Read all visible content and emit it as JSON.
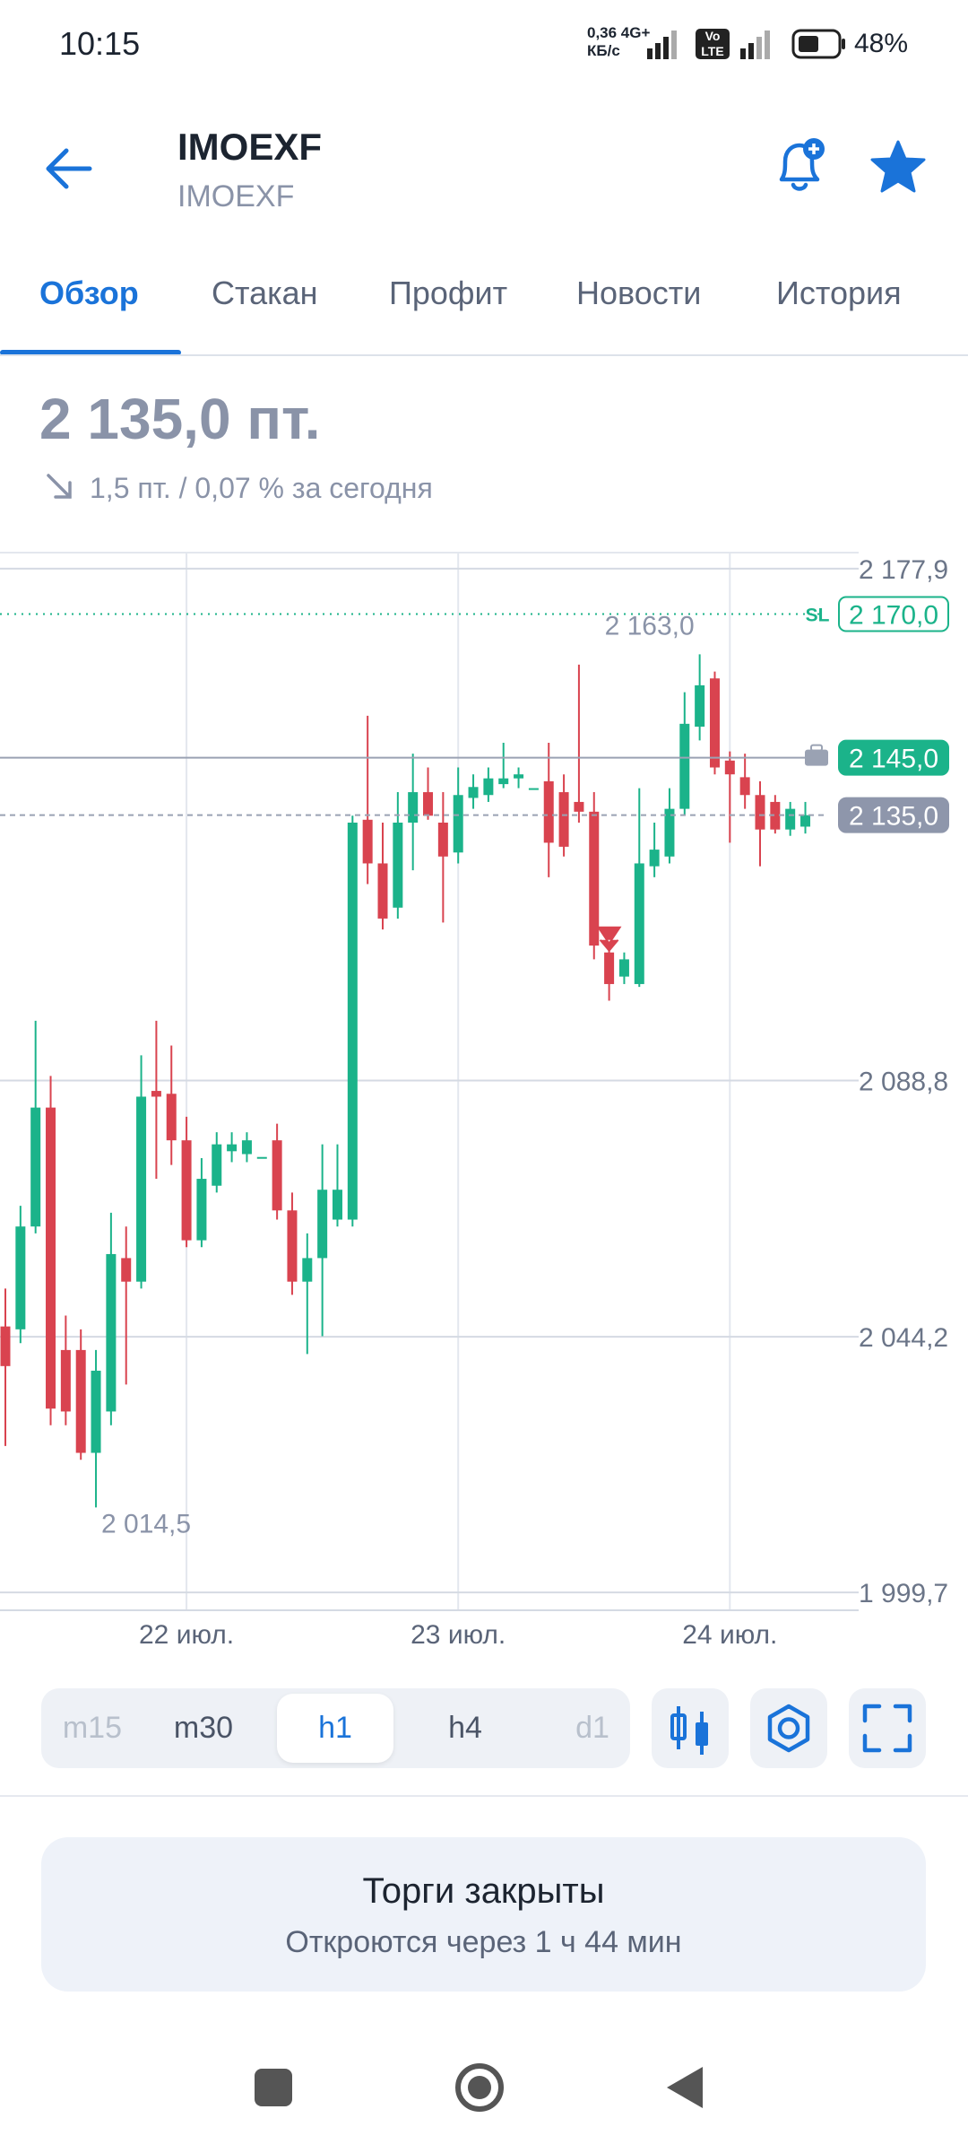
{
  "status_bar": {
    "time": "10:15",
    "net_speed": "0,36 4G+",
    "net_unit": "КБ/с",
    "volte_top": "Vo",
    "volte_bottom": "LTE",
    "battery": "48%"
  },
  "header": {
    "title": "IMOEXF",
    "subtitle": "IMOEXF"
  },
  "tabs": {
    "items": [
      "Обзор",
      "Стакан",
      "Профит",
      "Новости",
      "История"
    ],
    "active": "Обзор"
  },
  "price": {
    "value": "2 135,0 пт.",
    "change": "1,5 пт. / 0,07 % за сегодня"
  },
  "chart_data": {
    "type": "candlestick",
    "categories": [
      null,
      null,
      null,
      null,
      null,
      null,
      null,
      null,
      null,
      null,
      null,
      null,
      "22 июл.",
      null,
      null,
      null,
      null,
      null,
      null,
      null,
      null,
      null,
      null,
      null,
      null,
      null,
      null,
      null,
      null,
      null,
      "23 июл.",
      null,
      null,
      null,
      null,
      null,
      null,
      null,
      null,
      null,
      null,
      null,
      null,
      null,
      null,
      null,
      null,
      null,
      "24 июл.",
      null,
      null,
      null,
      null,
      null
    ],
    "open": [
      2046.0,
      2045.5,
      2063.4,
      2084.1,
      2041.9,
      2041.9,
      2024.0,
      2031.2,
      2057.9,
      2053.8,
      2087.0,
      2086.5,
      2078.4,
      2061.0,
      2070.5,
      2076.5,
      2076.0,
      2075.5,
      2078.4,
      2066.2,
      2053.8,
      2057.9,
      2064.6,
      2064.6,
      2134.2,
      2126.6,
      2118.9,
      2133.7,
      2139.0,
      2133.7,
      2128.5,
      2138.0,
      2138.5,
      2140.4,
      2141.4,
      2139.7,
      2140.9,
      2139.0,
      2137.3,
      2135.6,
      2111.1,
      2106.9,
      2105.6,
      2126.1,
      2127.8,
      2136.1,
      2150.4,
      2158.8,
      2144.5,
      2141.6,
      2138.5,
      2137.3,
      2132.5,
      2133.0
    ],
    "high": [
      2052.6,
      2067.0,
      2099.2,
      2089.6,
      2047.9,
      2045.5,
      2041.9,
      2065.8,
      2063.4,
      2093.2,
      2099.2,
      2094.9,
      2082.5,
      2075.3,
      2079.8,
      2079.8,
      2079.8,
      2075.5,
      2081.3,
      2069.3,
      2062.2,
      2077.7,
      2077.7,
      2134.9,
      2152.3,
      2133.7,
      2139.0,
      2145.7,
      2143.3,
      2139.0,
      2143.3,
      2142.1,
      2143.3,
      2147.6,
      2143.3,
      2139.7,
      2147.6,
      2142.1,
      2161.2,
      2139.0,
      2112.8,
      2111.1,
      2139.7,
      2133.7,
      2139.7,
      2156.4,
      2163.0,
      2160.0,
      2146.1,
      2145.7,
      2140.9,
      2138.5,
      2137.3,
      2137.3
    ],
    "low": [
      2025.2,
      2043.1,
      2062.2,
      2028.8,
      2028.8,
      2022.8,
      2014.5,
      2028.8,
      2035.9,
      2052.6,
      2071.7,
      2074.1,
      2059.8,
      2059.8,
      2069.3,
      2074.6,
      2074.6,
      2075.5,
      2064.6,
      2051.5,
      2041.2,
      2044.3,
      2063.4,
      2063.4,
      2123.0,
      2115.1,
      2117.0,
      2125.4,
      2134.2,
      2116.3,
      2126.6,
      2136.1,
      2137.3,
      2139.7,
      2139.7,
      2139.7,
      2124.2,
      2127.8,
      2133.7,
      2109.9,
      2102.7,
      2105.6,
      2105.1,
      2124.2,
      2126.6,
      2134.9,
      2148.0,
      2142.1,
      2130.2,
      2136.1,
      2126.1,
      2131.8,
      2131.4,
      2131.8
    ],
    "close": [
      2039.1,
      2063.4,
      2084.1,
      2031.7,
      2031.2,
      2024.0,
      2038.3,
      2058.6,
      2053.8,
      2086.0,
      2086.0,
      2078.4,
      2061.0,
      2071.7,
      2077.7,
      2077.7,
      2078.4,
      2075.5,
      2066.2,
      2053.8,
      2057.9,
      2069.8,
      2069.8,
      2133.7,
      2126.6,
      2117.0,
      2133.7,
      2139.0,
      2134.9,
      2127.8,
      2138.5,
      2139.9,
      2141.4,
      2141.4,
      2142.1,
      2139.7,
      2130.2,
      2129.5,
      2135.6,
      2112.3,
      2105.6,
      2109.9,
      2126.6,
      2129.0,
      2136.1,
      2150.9,
      2157.6,
      2143.3,
      2142.1,
      2138.5,
      2132.5,
      2132.5,
      2136.1,
      2135.0
    ],
    "up_color": "#1bb38a",
    "down_color": "#d9434f",
    "ylim": [
      1996.6,
      2180.7
    ],
    "yticks": [
      {
        "value": 2177.9,
        "label": "2 177,9"
      },
      {
        "value": 2088.8,
        "label": "2 088,8"
      },
      {
        "value": 2044.2,
        "label": "2 044,2"
      },
      {
        "value": 1999.7,
        "label": "1 999,7"
      }
    ],
    "grid": true,
    "levels": [
      {
        "name": "SL",
        "value": 2170.0,
        "label": "2 170,0",
        "color": "#1bb38a",
        "style": "dotted"
      },
      {
        "value": 2145.0,
        "label": "2 145,0",
        "color": "#1bb38a",
        "style": "solid"
      },
      {
        "value": 2135.0,
        "label": "2 135,0",
        "color": "#8e96ab",
        "style": "dashed"
      }
    ],
    "annotations": [
      {
        "value": 2163.0,
        "label": "2 163,0"
      },
      {
        "value": 2014.5,
        "label": "2 014,5"
      }
    ]
  },
  "timeframes": {
    "items": [
      "m15",
      "m30",
      "h1",
      "h4",
      "d1"
    ],
    "active": "h1"
  },
  "status_panel": {
    "title": "Торги закрыты",
    "subtitle": "Откроются через 1 ч 44 мин"
  }
}
